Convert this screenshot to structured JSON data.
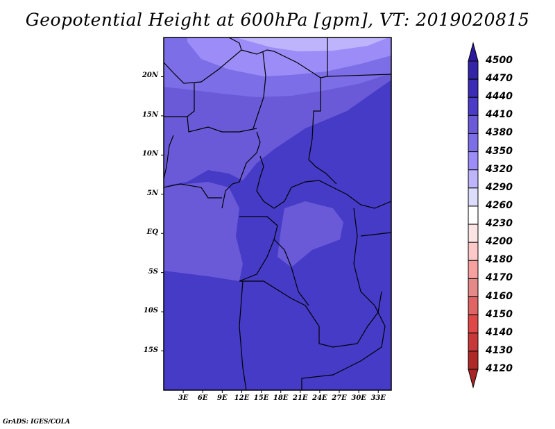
{
  "title": "Geopotential Height at 600hPa [gpm], VT: 2019020815",
  "credit": "GrADS: IGES/COLA",
  "map": {
    "lon_range": [
      0,
      35
    ],
    "lat_range": [
      -20,
      25
    ],
    "lat_labels": [
      "20N",
      "15N",
      "10N",
      "5N",
      "EQ",
      "5S",
      "10S",
      "15S"
    ],
    "lon_labels": [
      "3E",
      "6E",
      "9E",
      "12E",
      "15E",
      "18E",
      "21E",
      "24E",
      "27E",
      "30E",
      "33E"
    ]
  },
  "colorbar": {
    "labels": [
      "4500",
      "4470",
      "4440",
      "4410",
      "4380",
      "4350",
      "4320",
      "4290",
      "4260",
      "4230",
      "4200",
      "4180",
      "4170",
      "4160",
      "4150",
      "4140",
      "4130",
      "4120"
    ],
    "colors": [
      "#2c1a9e",
      "#3324a8",
      "#3b2cb8",
      "#4a3cc8",
      "#6a5ad8",
      "#7b6ee6",
      "#9c8cf8",
      "#bdb4fc",
      "#dcdcfc",
      "#ffffff",
      "#fde4e4",
      "#fcc8c8",
      "#f8a0a0",
      "#e48888",
      "#e06464",
      "#e04848",
      "#c83838",
      "#b02828",
      "#a82424"
    ]
  }
}
